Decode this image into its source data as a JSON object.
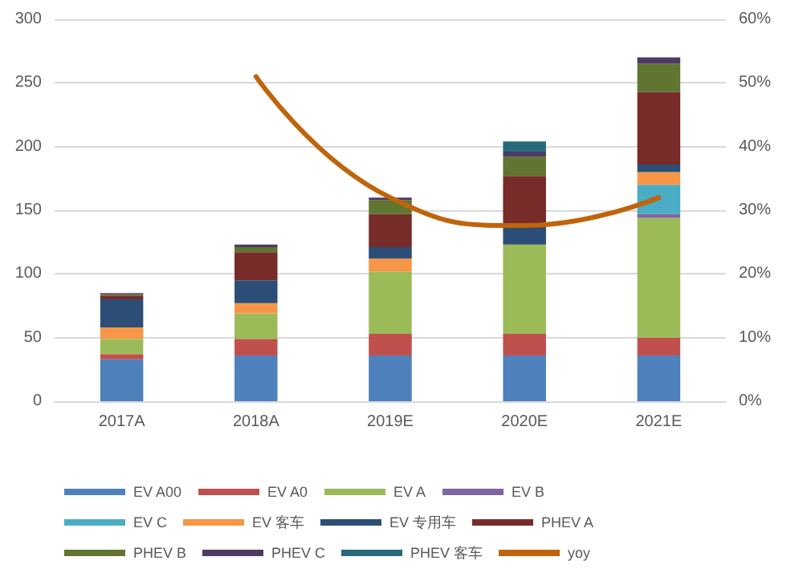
{
  "chart_data": {
    "type": "bar",
    "stacked": true,
    "categories": [
      "2017A",
      "2018A",
      "2019E",
      "2020E",
      "2021E"
    ],
    "series": [
      {
        "name": "EV A00",
        "color": "#4f81bd",
        "values": [
          33,
          36,
          36,
          36,
          36
        ]
      },
      {
        "name": "EV A0",
        "color": "#c0504d",
        "values": [
          4,
          13,
          17,
          17,
          14
        ]
      },
      {
        "name": "EV A",
        "color": "#9bbb59",
        "values": [
          12,
          20,
          49,
          70,
          94
        ]
      },
      {
        "name": "EV B",
        "color": "#8064a2",
        "values": [
          0,
          0,
          0,
          0,
          3
        ]
      },
      {
        "name": "EV C",
        "color": "#4bacc6",
        "values": [
          0,
          0,
          0,
          0,
          23
        ]
      },
      {
        "name": "EV 客车",
        "color": "#f79646",
        "values": [
          9,
          8,
          10,
          0,
          10
        ]
      },
      {
        "name": "EV 专用车",
        "color": "#2c4d75",
        "values": [
          22,
          18,
          9,
          16,
          6
        ]
      },
      {
        "name": "PHEV A",
        "color": "#772c2a",
        "values": [
          3,
          22,
          26,
          38,
          57
        ]
      },
      {
        "name": "PHEV B",
        "color": "#5f7530",
        "values": [
          1,
          4,
          11,
          15,
          22
        ]
      },
      {
        "name": "PHEV C",
        "color": "#4d3b62",
        "values": [
          1,
          2,
          2,
          4,
          5
        ]
      },
      {
        "name": "PHEV 客车",
        "color": "#276a7c",
        "values": [
          0,
          0,
          0,
          8,
          0
        ]
      },
      {
        "name": "yoy",
        "type": "line",
        "axis": "y2",
        "color": "#c0640c",
        "values": [
          null,
          51,
          32,
          27.6,
          32
        ]
      }
    ],
    "ylim": [
      0,
      300
    ],
    "yticks": [
      0,
      50,
      100,
      150,
      200,
      250,
      300
    ],
    "y2lim": [
      0,
      60
    ],
    "y2ticks": [
      {
        "value": 0,
        "label": "0%"
      },
      {
        "value": 10,
        "label": "10%"
      },
      {
        "value": 20,
        "label": "20%"
      },
      {
        "value": 30,
        "label": "30%"
      },
      {
        "value": 40,
        "label": "40%"
      },
      {
        "value": 50,
        "label": "50%"
      },
      {
        "value": 60,
        "label": "60%"
      }
    ],
    "grid": "y",
    "legend": "bottom",
    "marker": "none"
  }
}
